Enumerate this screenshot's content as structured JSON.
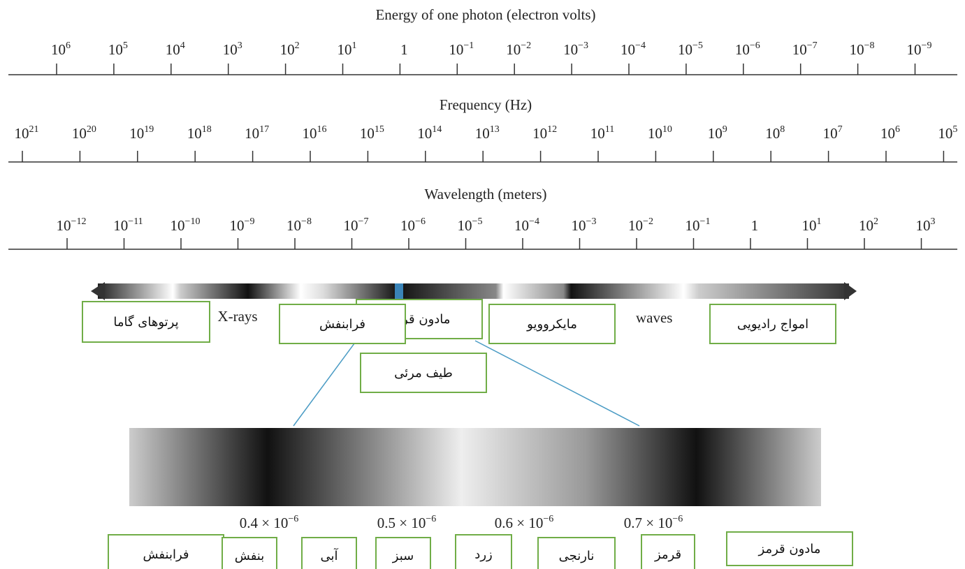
{
  "energy": {
    "title": "Energy of one photon (electron volts)",
    "ticks": [
      {
        "base": "10",
        "exp": "6"
      },
      {
        "base": "10",
        "exp": "5"
      },
      {
        "base": "10",
        "exp": "4"
      },
      {
        "base": "10",
        "exp": "3"
      },
      {
        "base": "10",
        "exp": "2"
      },
      {
        "base": "10",
        "exp": "1"
      },
      {
        "base": "1"
      },
      {
        "base": "10",
        "exp": "−1"
      },
      {
        "base": "10",
        "exp": "−2"
      },
      {
        "base": "10",
        "exp": "−3"
      },
      {
        "base": "10",
        "exp": "−4"
      },
      {
        "base": "10",
        "exp": "−5"
      },
      {
        "base": "10",
        "exp": "−6"
      },
      {
        "base": "10",
        "exp": "−7"
      },
      {
        "base": "10",
        "exp": "−8"
      },
      {
        "base": "10",
        "exp": "−9"
      }
    ]
  },
  "frequency": {
    "title": "Frequency (Hz)",
    "ticks": [
      {
        "base": "10",
        "exp": "21"
      },
      {
        "base": "10",
        "exp": "20"
      },
      {
        "base": "10",
        "exp": "19"
      },
      {
        "base": "10",
        "exp": "18"
      },
      {
        "base": "10",
        "exp": "17"
      },
      {
        "base": "10",
        "exp": "16"
      },
      {
        "base": "10",
        "exp": "15"
      },
      {
        "base": "10",
        "exp": "14"
      },
      {
        "base": "10",
        "exp": "13"
      },
      {
        "base": "10",
        "exp": "12"
      },
      {
        "base": "10",
        "exp": "11"
      },
      {
        "base": "10",
        "exp": "10"
      },
      {
        "base": "10",
        "exp": "9"
      },
      {
        "base": "10",
        "exp": "8"
      },
      {
        "base": "10",
        "exp": "7"
      },
      {
        "base": "10",
        "exp": "6"
      },
      {
        "base": "10",
        "exp": "5"
      }
    ]
  },
  "wavelength": {
    "title": "Wavelength (meters)",
    "ticks": [
      {
        "base": "10",
        "exp": "−12"
      },
      {
        "base": "10",
        "exp": "−11"
      },
      {
        "base": "10",
        "exp": "−10"
      },
      {
        "base": "10",
        "exp": "−9"
      },
      {
        "base": "10",
        "exp": "−8"
      },
      {
        "base": "10",
        "exp": "−7"
      },
      {
        "base": "10",
        "exp": "−6"
      },
      {
        "base": "10",
        "exp": "−5"
      },
      {
        "base": "10",
        "exp": "−4"
      },
      {
        "base": "10",
        "exp": "−3"
      },
      {
        "base": "10",
        "exp": "−2"
      },
      {
        "base": "10",
        "exp": "−1"
      },
      {
        "base": "1"
      },
      {
        "base": "10",
        "exp": "1"
      },
      {
        "base": "10",
        "exp": "2"
      },
      {
        "base": "10",
        "exp": "3"
      }
    ]
  },
  "spectrum_labels": [
    "X-rays",
    "waves"
  ],
  "bands": [
    "مادون قرمز",
    "پرتوهای گاما",
    "فرابنفش",
    "مایکروویو",
    "امواج رادیویی",
    "طیف مرئی"
  ],
  "visible": {
    "ticks": [
      {
        "base": "0.4 × 10",
        "exp": "−6"
      },
      {
        "base": "0.5 × 10",
        "exp": "−6"
      },
      {
        "base": "0.6 × 10",
        "exp": "−6"
      },
      {
        "base": "0.7 × 10",
        "exp": "−6"
      }
    ],
    "colors": [
      "فرابنفش",
      "بنفش",
      "آبی",
      "سبز",
      "زرد",
      "نارنجی",
      "قرمز",
      "مادون قرمز"
    ]
  }
}
